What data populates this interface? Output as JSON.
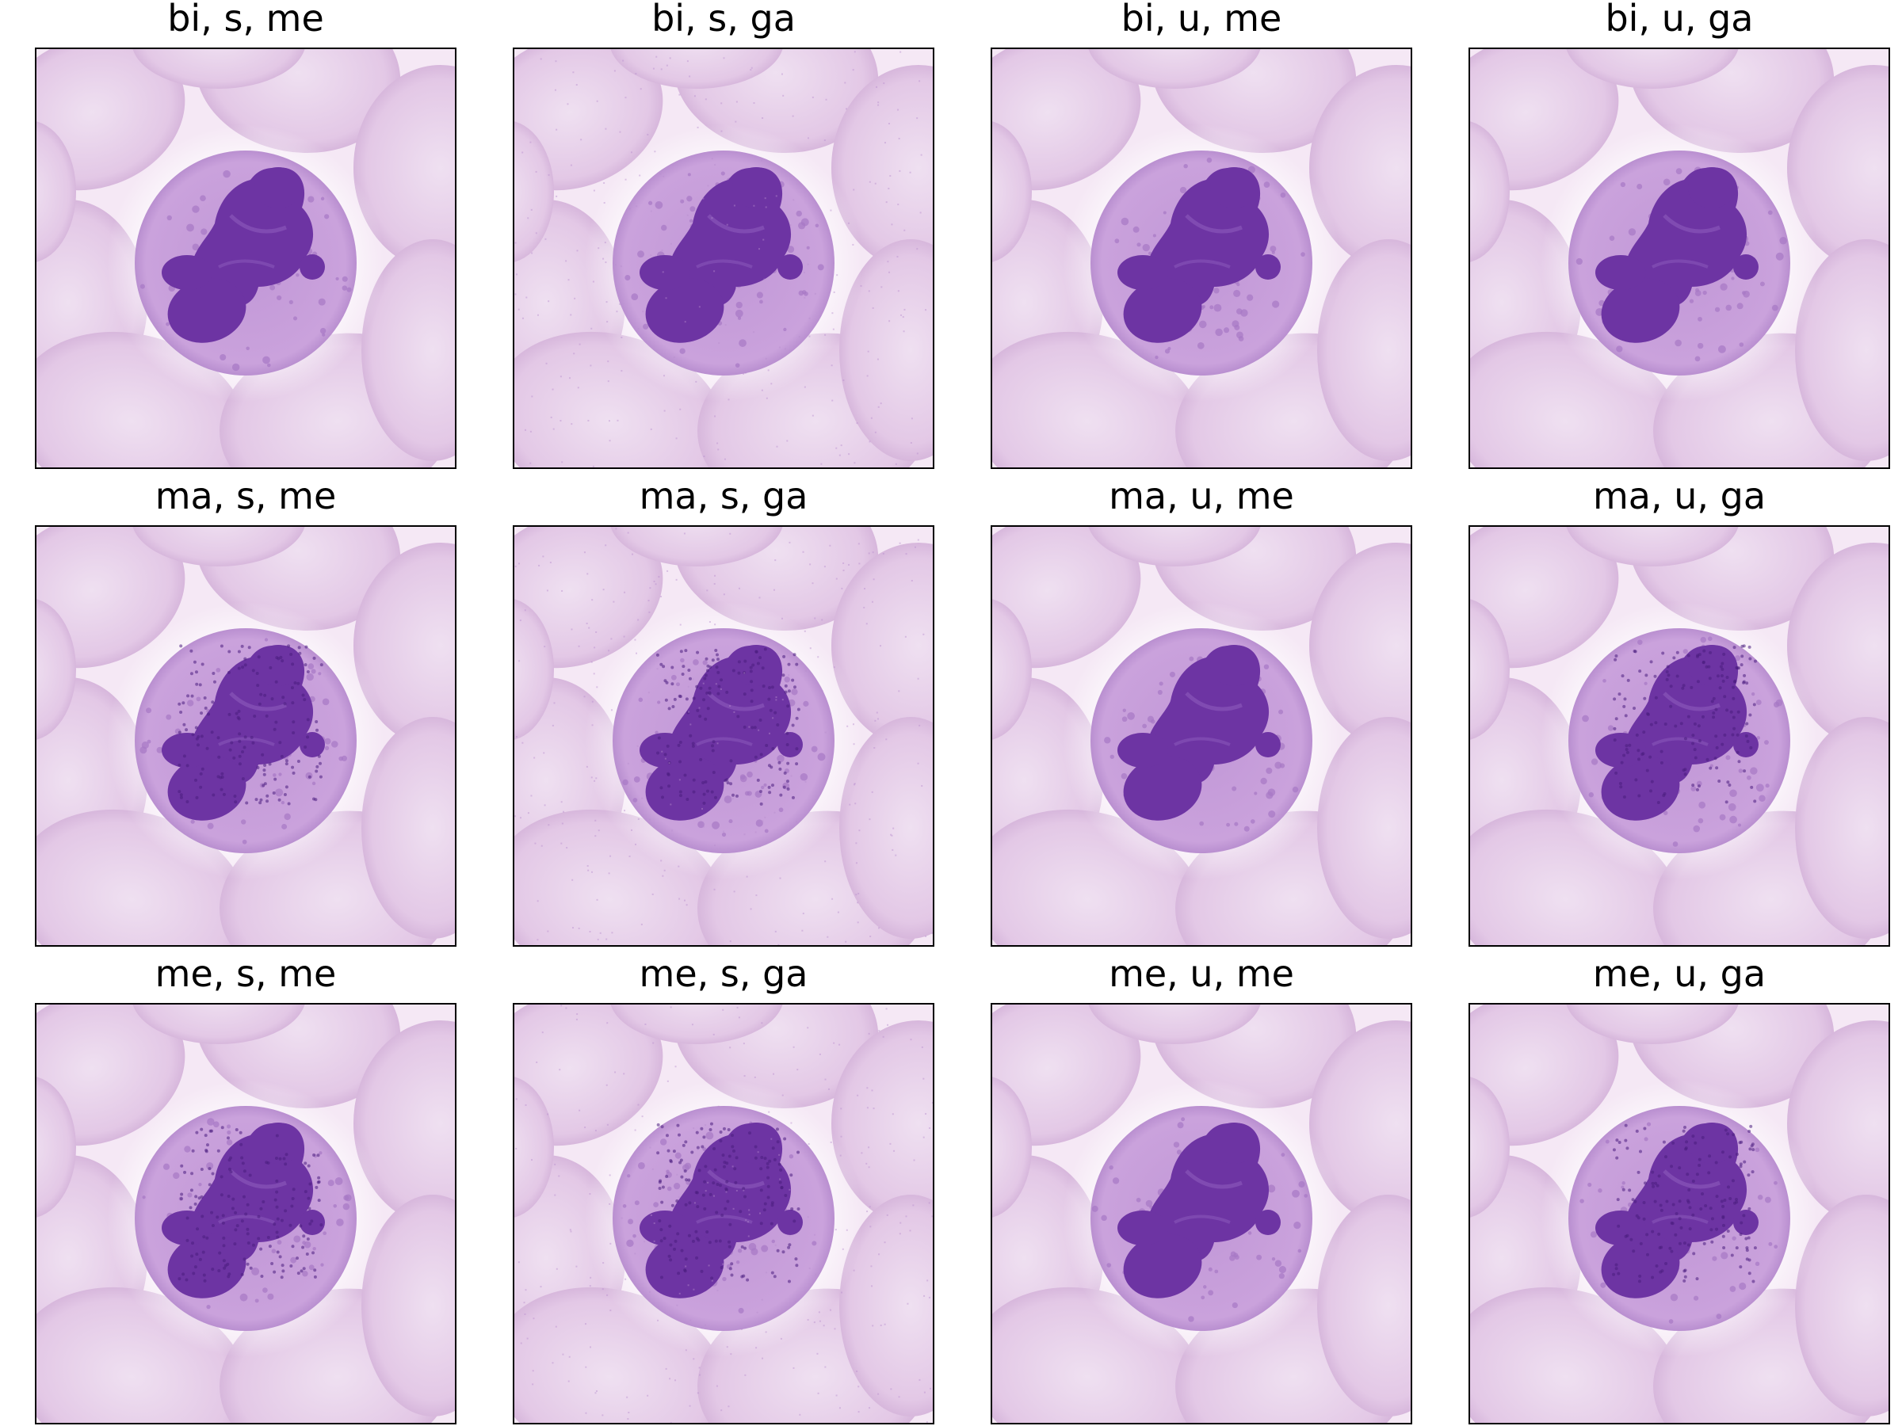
{
  "figure": {
    "panels": [
      {
        "title": "bi, s, me",
        "speckle": false,
        "dots": false
      },
      {
        "title": "bi, s, ga",
        "speckle": true,
        "dots": false
      },
      {
        "title": "bi, u, me",
        "speckle": false,
        "dots": false
      },
      {
        "title": "bi, u, ga",
        "speckle": false,
        "dots": false
      },
      {
        "title": "ma, s, me",
        "speckle": false,
        "dots": true
      },
      {
        "title": "ma, s, ga",
        "speckle": true,
        "dots": true
      },
      {
        "title": "ma, u, me",
        "speckle": false,
        "dots": false
      },
      {
        "title": "ma, u, ga",
        "speckle": false,
        "dots": true
      },
      {
        "title": "me, s, me",
        "speckle": false,
        "dots": true
      },
      {
        "title": "me, s, ga",
        "speckle": true,
        "dots": true
      },
      {
        "title": "me, u, me",
        "speckle": false,
        "dots": false
      },
      {
        "title": "me, u, ga",
        "speckle": false,
        "dots": true
      }
    ],
    "colors": {
      "background": "#f5e8f5",
      "red_cell": "#e3c8e6",
      "cytoplasm": "#caa2dc",
      "nucleus": "#6d34a3",
      "nucleus_dark": "#4b1e80",
      "frame": "#000000"
    }
  }
}
